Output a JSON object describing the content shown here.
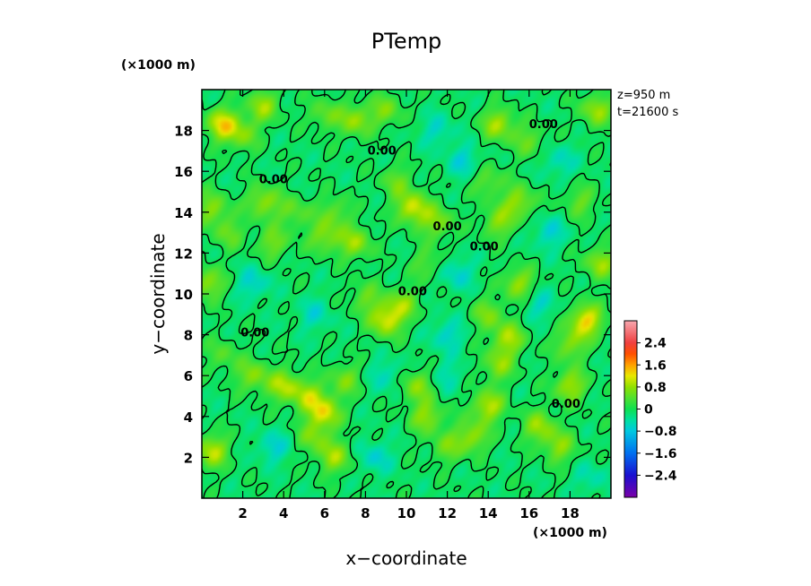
{
  "chart_data": {
    "type": "heatmap",
    "title": "PTemp",
    "xlabel": "x−coordinate",
    "ylabel": "y−coordinate",
    "x_unit": "(×1000 m)",
    "y_unit": "(×1000 m)",
    "xlim": [
      0,
      20
    ],
    "ylim": [
      0,
      20
    ],
    "x_ticks": [
      2,
      4,
      6,
      8,
      10,
      12,
      14,
      16,
      18
    ],
    "y_ticks": [
      2,
      4,
      6,
      8,
      10,
      12,
      14,
      16,
      18
    ],
    "x_tick_labels": [
      "2",
      "4",
      "6",
      "8",
      "10",
      "12",
      "14",
      "16",
      "18"
    ],
    "y_tick_labels": [
      "2",
      "4",
      "6",
      "8",
      "10",
      "12",
      "14",
      "16",
      "18"
    ],
    "annotations": [
      "z=950 m",
      "t=21600 s"
    ],
    "contour_label": "0.00",
    "contour_labels": [
      {
        "text": "0.00",
        "x": 12.0,
        "y": 13.3
      },
      {
        "text": "0.00",
        "x": 8.8,
        "y": 17.0
      },
      {
        "text": "0.00",
        "x": 3.5,
        "y": 15.6
      },
      {
        "text": "0.00",
        "x": 2.6,
        "y": 8.1
      },
      {
        "text": "0.00",
        "x": 10.3,
        "y": 10.1
      },
      {
        "text": "0.00",
        "x": 16.7,
        "y": 18.3
      },
      {
        "text": "0.00",
        "x": 17.8,
        "y": 4.6
      },
      {
        "text": "0.00",
        "x": 13.8,
        "y": 12.3
      }
    ],
    "colorbar": {
      "range": [
        -3.2,
        3.2
      ],
      "ticks": [
        2.4,
        1.6,
        0.8,
        0,
        -0.8,
        -1.6,
        -2.4
      ],
      "tick_labels": [
        "2.4",
        "1.6",
        "0.8",
        "0",
        "−0.8",
        "−1.6",
        "−2.4"
      ],
      "colors": [
        {
          "v": -3.2,
          "c": "#7a00a8"
        },
        {
          "v": -2.4,
          "c": "#1a10d0"
        },
        {
          "v": -1.6,
          "c": "#0070f0"
        },
        {
          "v": -0.8,
          "c": "#00c8e0"
        },
        {
          "v": -0.4,
          "c": "#00e0a0"
        },
        {
          "v": 0.0,
          "c": "#10e050"
        },
        {
          "v": 0.4,
          "c": "#50e030"
        },
        {
          "v": 0.8,
          "c": "#90e000"
        },
        {
          "v": 1.2,
          "c": "#e8e800"
        },
        {
          "v": 1.6,
          "c": "#ffa000"
        },
        {
          "v": 2.0,
          "c": "#ff5000"
        },
        {
          "v": 2.4,
          "c": "#f04040"
        },
        {
          "v": 3.2,
          "c": "#f8a8b0"
        }
      ]
    },
    "field": {
      "base": 0.0,
      "features": [
        {
          "x": 1.0,
          "y": 18.3,
          "v": 1.3
        },
        {
          "x": 2.0,
          "y": 17.8,
          "v": 0.7
        },
        {
          "x": 3.0,
          "y": 19.2,
          "v": 0.9
        },
        {
          "x": 0.5,
          "y": 14.2,
          "v": 0.8
        },
        {
          "x": 0.3,
          "y": 10.5,
          "v": 0.9
        },
        {
          "x": 1.3,
          "y": 13.0,
          "v": 0.6
        },
        {
          "x": 0.5,
          "y": 2.3,
          "v": 1.1
        },
        {
          "x": 1.0,
          "y": 7.0,
          "v": 0.5
        },
        {
          "x": 2.5,
          "y": 6.0,
          "v": 0.8
        },
        {
          "x": 3.0,
          "y": 14.5,
          "v": 0.9
        },
        {
          "x": 4.5,
          "y": 14.0,
          "v": 0.6
        },
        {
          "x": 3.5,
          "y": 12.5,
          "v": 0.7
        },
        {
          "x": 4.0,
          "y": 5.5,
          "v": 1.0
        },
        {
          "x": 5.2,
          "y": 5.0,
          "v": 0.9
        },
        {
          "x": 6.0,
          "y": 4.2,
          "v": 1.2
        },
        {
          "x": 5.5,
          "y": 3.0,
          "v": 0.7
        },
        {
          "x": 6.5,
          "y": 2.0,
          "v": 0.9
        },
        {
          "x": 7.0,
          "y": 5.8,
          "v": 0.7
        },
        {
          "x": 6.0,
          "y": 12.8,
          "v": 0.8
        },
        {
          "x": 7.5,
          "y": 12.5,
          "v": 0.9
        },
        {
          "x": 6.5,
          "y": 14.0,
          "v": 0.6
        },
        {
          "x": 7.5,
          "y": 18.5,
          "v": 0.9
        },
        {
          "x": 9.0,
          "y": 19.0,
          "v": 0.7
        },
        {
          "x": 6.0,
          "y": 18.8,
          "v": 0.6
        },
        {
          "x": 9.0,
          "y": 8.7,
          "v": 1.2
        },
        {
          "x": 9.8,
          "y": 9.5,
          "v": 0.8
        },
        {
          "x": 8.0,
          "y": 9.8,
          "v": 0.6
        },
        {
          "x": 10.3,
          "y": 14.2,
          "v": 1.2
        },
        {
          "x": 11.5,
          "y": 13.5,
          "v": 0.8
        },
        {
          "x": 9.5,
          "y": 15.5,
          "v": 0.6
        },
        {
          "x": 10.5,
          "y": 5.5,
          "v": 0.8
        },
        {
          "x": 11.0,
          "y": 4.0,
          "v": 0.9
        },
        {
          "x": 12.0,
          "y": 2.5,
          "v": 0.6
        },
        {
          "x": 11.0,
          "y": 11.5,
          "v": 0.5
        },
        {
          "x": 14.0,
          "y": 4.5,
          "v": 1.1
        },
        {
          "x": 13.2,
          "y": 3.0,
          "v": 0.9
        },
        {
          "x": 14.5,
          "y": 6.5,
          "v": 0.8
        },
        {
          "x": 15.0,
          "y": 7.8,
          "v": 1.0
        },
        {
          "x": 14.0,
          "y": 9.0,
          "v": 0.7
        },
        {
          "x": 15.5,
          "y": 10.5,
          "v": 0.9
        },
        {
          "x": 14.5,
          "y": 13.5,
          "v": 0.8
        },
        {
          "x": 15.5,
          "y": 14.5,
          "v": 0.9
        },
        {
          "x": 14.0,
          "y": 15.5,
          "v": 0.6
        },
        {
          "x": 14.5,
          "y": 18.3,
          "v": 1.0
        },
        {
          "x": 16.0,
          "y": 17.5,
          "v": 0.6
        },
        {
          "x": 16.5,
          "y": 3.5,
          "v": 0.9
        },
        {
          "x": 17.5,
          "y": 2.5,
          "v": 0.8
        },
        {
          "x": 18.0,
          "y": 5.5,
          "v": 1.0
        },
        {
          "x": 18.8,
          "y": 8.7,
          "v": 1.4
        },
        {
          "x": 18.0,
          "y": 7.5,
          "v": 0.8
        },
        {
          "x": 19.5,
          "y": 11.5,
          "v": 0.9
        },
        {
          "x": 19.3,
          "y": 19.0,
          "v": 0.9
        },
        {
          "x": 18.5,
          "y": 14.5,
          "v": 0.6
        },
        {
          "x": 12.0,
          "y": 8.0,
          "v": -0.6
        },
        {
          "x": 12.5,
          "y": 11.0,
          "v": -0.6
        },
        {
          "x": 12.8,
          "y": 16.5,
          "v": -0.6
        },
        {
          "x": 11.5,
          "y": 18.0,
          "v": -0.5
        },
        {
          "x": 2.5,
          "y": 10.5,
          "v": -0.6
        },
        {
          "x": 3.5,
          "y": 2.5,
          "v": -0.6
        },
        {
          "x": 8.5,
          "y": 2.0,
          "v": -0.6
        },
        {
          "x": 17.0,
          "y": 13.0,
          "v": -0.6
        },
        {
          "x": 17.5,
          "y": 16.5,
          "v": -0.5
        },
        {
          "x": 16.5,
          "y": 9.5,
          "v": -0.5
        },
        {
          "x": 9.0,
          "y": 6.0,
          "v": -0.5
        },
        {
          "x": 5.5,
          "y": 9.0,
          "v": -0.5
        },
        {
          "x": 12.0,
          "y": 6.0,
          "v": -0.4
        },
        {
          "x": 19.0,
          "y": 1.0,
          "v": -0.4
        }
      ]
    }
  }
}
